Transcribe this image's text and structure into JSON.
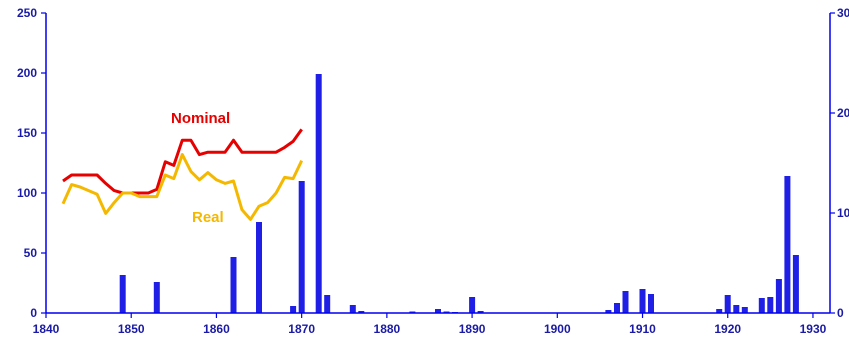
{
  "chart_data": {
    "type": "bar+line",
    "title": "",
    "xlabel": "",
    "ylabel": "",
    "colors": {
      "axis": "#0000ee",
      "bars": "#1f1fe6",
      "nominal": "#e60000",
      "real": "#f5b800",
      "text": "#1a1aa6"
    },
    "xlim": [
      1840,
      1932
    ],
    "x_ticks": [
      1840,
      1850,
      1860,
      1870,
      1880,
      1890,
      1900,
      1910,
      1920,
      1930
    ],
    "x_tick_labels": [
      "1840",
      "1850",
      "1860",
      "1870",
      "1880",
      "1890",
      "1900",
      "1910",
      "1920",
      "1930"
    ],
    "left_axis": {
      "ylim": [
        0,
        250
      ],
      "ticks": [
        0,
        50,
        100,
        150,
        200,
        250
      ],
      "tick_labels": [
        "0",
        "50",
        "100",
        "150",
        "200",
        "250"
      ]
    },
    "right_axis": {
      "ylim": [
        0,
        30
      ],
      "ticks": [
        0,
        10,
        20,
        30
      ],
      "tick_labels": [
        "0",
        "10",
        "20",
        "30"
      ]
    },
    "series": [
      {
        "name": "Nominal",
        "kind": "line",
        "axis": "left",
        "x": [
          1842,
          1843,
          1844,
          1845,
          1846,
          1847,
          1848,
          1849,
          1850,
          1851,
          1852,
          1853,
          1854,
          1855,
          1856,
          1857,
          1858,
          1859,
          1860,
          1861,
          1862,
          1863,
          1864,
          1865,
          1866,
          1867,
          1868,
          1869,
          1870
        ],
        "y": [
          110,
          115,
          115,
          115,
          115,
          108,
          102,
          100,
          100,
          100,
          100,
          103,
          126,
          123,
          144,
          144,
          132,
          134,
          134,
          134,
          144,
          134,
          134,
          134,
          134,
          134,
          138,
          143,
          153
        ]
      },
      {
        "name": "Real",
        "kind": "line",
        "axis": "left",
        "x": [
          1842,
          1843,
          1844,
          1845,
          1846,
          1847,
          1848,
          1849,
          1850,
          1851,
          1852,
          1853,
          1854,
          1855,
          1856,
          1857,
          1858,
          1859,
          1860,
          1861,
          1862,
          1863,
          1864,
          1865,
          1866,
          1867,
          1868,
          1869,
          1870
        ],
        "y": [
          91,
          107,
          105,
          102,
          99,
          83,
          92,
          100,
          100,
          97,
          97,
          97,
          115,
          112,
          132,
          118,
          111,
          117,
          111,
          108,
          110,
          86,
          78,
          89,
          92,
          100,
          113,
          112,
          127
        ]
      },
      {
        "name": "",
        "kind": "bar",
        "axis": "right",
        "x": [
          1849,
          1853,
          1862,
          1865,
          1869,
          1870,
          1872,
          1873,
          1876,
          1877,
          1883,
          1886,
          1887,
          1888,
          1890,
          1891,
          1906,
          1907,
          1908,
          1910,
          1911,
          1919,
          1920,
          1921,
          1922,
          1924,
          1925,
          1926,
          1927,
          1928
        ],
        "y": [
          3.8,
          3.1,
          5.6,
          9.1,
          0.7,
          13.2,
          23.9,
          1.8,
          0.8,
          0.2,
          0.15,
          0.4,
          0.15,
          0.1,
          1.6,
          0.2,
          0.3,
          1.0,
          2.2,
          2.4,
          1.9,
          0.4,
          1.8,
          0.8,
          0.6,
          1.5,
          1.6,
          3.4,
          13.7,
          5.8
        ]
      }
    ],
    "annotations": [
      {
        "text": "Nominal",
        "series": "Nominal"
      },
      {
        "text": "Real",
        "series": "Real"
      }
    ],
    "grid": false
  }
}
